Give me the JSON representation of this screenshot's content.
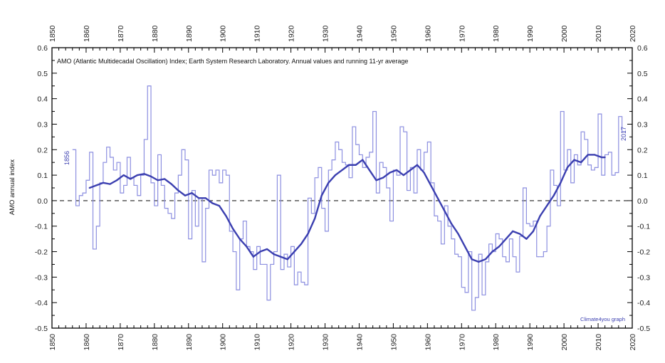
{
  "chart_data": {
    "type": "line",
    "title": "AMO (Atlantic Multidecadal Oscillation) Index; Earth System Research Laboratory. Annual values and running 11-yr average",
    "xlabel": "",
    "ylabel": "AMO annual index",
    "xlim": [
      1850,
      2020
    ],
    "ylim": [
      -0.5,
      0.6
    ],
    "x_ticks": [
      "1850",
      "1860",
      "1870",
      "1880",
      "1890",
      "1900",
      "1910",
      "1920",
      "1930",
      "1940",
      "1950",
      "1960",
      "1970",
      "1980",
      "1990",
      "2000",
      "2010",
      "2020"
    ],
    "y_ticks": [
      "-0.5",
      "-0.4",
      "-0.3",
      "-0.2",
      "-0.1",
      "0.0",
      "0.1",
      "0.2",
      "0.3",
      "0.4",
      "0.5",
      "0.6"
    ],
    "grid": false,
    "reference_line": 0.0,
    "annotations": {
      "start_year": "1856",
      "end_year": "2017",
      "credit": "Climate4you graph"
    },
    "colors": {
      "series": "#3b3fb0",
      "annual_line": "#8c8fe0",
      "axes": "#000000"
    },
    "series": [
      {
        "style": "step",
        "x": [
          1856,
          1857,
          1858,
          1859,
          1860,
          1861,
          1862,
          1863,
          1864,
          1865,
          1866,
          1867,
          1868,
          1869,
          1870,
          1871,
          1872,
          1873,
          1874,
          1875,
          1876,
          1877,
          1878,
          1879,
          1880,
          1881,
          1882,
          1883,
          1884,
          1885,
          1886,
          1887,
          1888,
          1889,
          1890,
          1891,
          1892,
          1893,
          1894,
          1895,
          1896,
          1897,
          1898,
          1899,
          1900,
          1901,
          1902,
          1903,
          1904,
          1905,
          1906,
          1907,
          1908,
          1909,
          1910,
          1911,
          1912,
          1913,
          1914,
          1915,
          1916,
          1917,
          1918,
          1919,
          1920,
          1921,
          1922,
          1923,
          1924,
          1925,
          1926,
          1927,
          1928,
          1929,
          1930,
          1931,
          1932,
          1933,
          1934,
          1935,
          1936,
          1937,
          1938,
          1939,
          1940,
          1941,
          1942,
          1943,
          1944,
          1945,
          1946,
          1947,
          1948,
          1949,
          1950,
          1951,
          1952,
          1953,
          1954,
          1955,
          1956,
          1957,
          1958,
          1959,
          1960,
          1961,
          1962,
          1963,
          1964,
          1965,
          1966,
          1967,
          1968,
          1969,
          1970,
          1971,
          1972,
          1973,
          1974,
          1975,
          1976,
          1977,
          1978,
          1979,
          1980,
          1981,
          1982,
          1983,
          1984,
          1985,
          1986,
          1987,
          1988,
          1989,
          1990,
          1991,
          1992,
          1993,
          1994,
          1995,
          1996,
          1997,
          1998,
          1999,
          2000,
          2001,
          2002,
          2003,
          2004,
          2005,
          2006,
          2007,
          2008,
          2009,
          2010,
          2011,
          2012,
          2013,
          2014,
          2015,
          2016,
          2017
        ],
        "values": [
          0.2,
          -0.02,
          0.02,
          0.03,
          0.08,
          0.19,
          -0.19,
          -0.1,
          0.07,
          0.15,
          0.21,
          0.17,
          0.12,
          0.15,
          0.03,
          0.06,
          0.17,
          0.09,
          0.06,
          0.02,
          0.1,
          0.24,
          0.45,
          0.07,
          -0.02,
          0.18,
          0.06,
          -0.03,
          -0.05,
          -0.07,
          0.03,
          0.1,
          0.2,
          0.16,
          -0.15,
          0.04,
          -0.1,
          0.01,
          -0.24,
          -0.03,
          0.12,
          0.1,
          0.12,
          0.07,
          0.12,
          0.1,
          -0.12,
          -0.2,
          -0.35,
          -0.15,
          -0.08,
          -0.18,
          -0.2,
          -0.27,
          -0.18,
          -0.25,
          -0.25,
          -0.39,
          -0.25,
          -0.2,
          0.1,
          -0.27,
          -0.21,
          -0.26,
          -0.18,
          -0.33,
          -0.28,
          -0.32,
          -0.33,
          0.01,
          -0.05,
          0.09,
          0.13,
          -0.03,
          -0.12,
          0.12,
          0.16,
          0.23,
          0.2,
          0.15,
          0.14,
          0.09,
          0.29,
          0.22,
          0.18,
          0.13,
          0.17,
          0.19,
          0.35,
          0.03,
          0.15,
          0.13,
          0.05,
          -0.08,
          0.12,
          0.1,
          0.29,
          0.27,
          0.04,
          0.13,
          0.03,
          0.2,
          0.12,
          0.19,
          0.23,
          0.07,
          -0.06,
          -0.08,
          -0.17,
          -0.02,
          -0.1,
          -0.15,
          -0.21,
          -0.22,
          -0.34,
          -0.36,
          -0.2,
          -0.43,
          -0.38,
          -0.21,
          -0.37,
          -0.24,
          -0.17,
          -0.2,
          -0.13,
          -0.15,
          -0.22,
          -0.24,
          -0.15,
          -0.22,
          -0.28,
          -0.14,
          0.05,
          -0.09,
          -0.1,
          -0.08,
          -0.22,
          -0.22,
          -0.2,
          -0.1,
          0.12,
          0.06,
          -0.02,
          0.35,
          0.12,
          0.2,
          0.07,
          0.18,
          0.14,
          0.27,
          0.24,
          0.14,
          0.12,
          0.13,
          0.34,
          0.1,
          0.18,
          0.19,
          0.1,
          0.11,
          0.33,
          0.27
        ]
      },
      {
        "style": "smooth",
        "x": [
          1861,
          1863,
          1865,
          1867,
          1869,
          1871,
          1873,
          1875,
          1877,
          1879,
          1881,
          1883,
          1885,
          1887,
          1889,
          1891,
          1893,
          1895,
          1897,
          1899,
          1901,
          1903,
          1905,
          1907,
          1909,
          1911,
          1913,
          1915,
          1917,
          1919,
          1921,
          1923,
          1925,
          1927,
          1929,
          1931,
          1933,
          1935,
          1937,
          1939,
          1941,
          1943,
          1945,
          1947,
          1949,
          1951,
          1953,
          1955,
          1957,
          1959,
          1961,
          1963,
          1965,
          1967,
          1969,
          1971,
          1973,
          1975,
          1977,
          1979,
          1981,
          1983,
          1985,
          1987,
          1989,
          1991,
          1993,
          1995,
          1997,
          1999,
          2001,
          2003,
          2005,
          2007,
          2009,
          2011,
          2012
        ],
        "values": [
          0.05,
          0.06,
          0.07,
          0.065,
          0.08,
          0.1,
          0.085,
          0.1,
          0.105,
          0.095,
          0.08,
          0.085,
          0.065,
          0.04,
          0.02,
          0.03,
          0.01,
          0.01,
          -0.01,
          -0.02,
          -0.06,
          -0.11,
          -0.15,
          -0.18,
          -0.22,
          -0.2,
          -0.19,
          -0.21,
          -0.22,
          -0.23,
          -0.2,
          -0.17,
          -0.13,
          -0.07,
          0.02,
          0.07,
          0.1,
          0.12,
          0.14,
          0.14,
          0.16,
          0.12,
          0.08,
          0.09,
          0.11,
          0.12,
          0.1,
          0.12,
          0.14,
          0.11,
          0.06,
          0.01,
          -0.04,
          -0.09,
          -0.13,
          -0.18,
          -0.23,
          -0.24,
          -0.23,
          -0.2,
          -0.18,
          -0.15,
          -0.12,
          -0.13,
          -0.15,
          -0.12,
          -0.06,
          -0.02,
          0.02,
          0.07,
          0.13,
          0.16,
          0.15,
          0.18,
          0.18,
          0.17,
          0.17
        ]
      }
    ]
  }
}
